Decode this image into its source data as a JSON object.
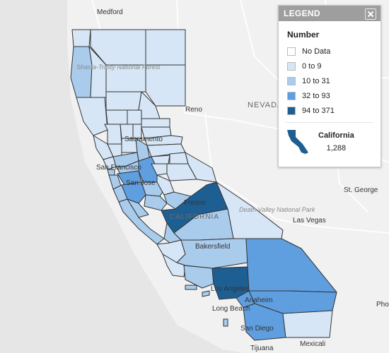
{
  "legend": {
    "header": "LEGEND",
    "title": "Number",
    "items": [
      {
        "label": "No Data",
        "color": "#ffffff"
      },
      {
        "label": "0 to 9",
        "color": "#d6e6f6"
      },
      {
        "label": "10 to 31",
        "color": "#a9cbec"
      },
      {
        "label": "32 to 93",
        "color": "#5f9fe0"
      },
      {
        "label": "94 to 371",
        "color": "#1e5f93"
      }
    ],
    "summary": {
      "name": "California",
      "value": "1,288"
    }
  },
  "map": {
    "region_labels": {
      "nevada": "NEVADA",
      "california": "CALIFORNIA"
    },
    "park_labels": {
      "shasta_trinity": "Shasta-Trinity National Forest",
      "death_valley": "Death Valley National Park"
    },
    "cities": {
      "medford": "Medford",
      "reno": "Reno",
      "sacramento": "Sacramento",
      "san_francisco": "San Francisco",
      "san_jose": "San Jose",
      "fresno": "Fresno",
      "st_george": "St. George",
      "las_vegas": "Las Vegas",
      "bakersfield": "Bakersfield",
      "los_angeles": "Los Angeles",
      "long_beach": "Long Beach",
      "anaheim": "Anaheim",
      "san_diego": "San Diego",
      "tijuana": "Tijuana",
      "mexicali": "Mexicali",
      "phoenix": "Phoenix"
    },
    "colors": {
      "ocean": "#e6e6e6",
      "land": "#f1f1f1",
      "county_border": "#333333"
    }
  }
}
